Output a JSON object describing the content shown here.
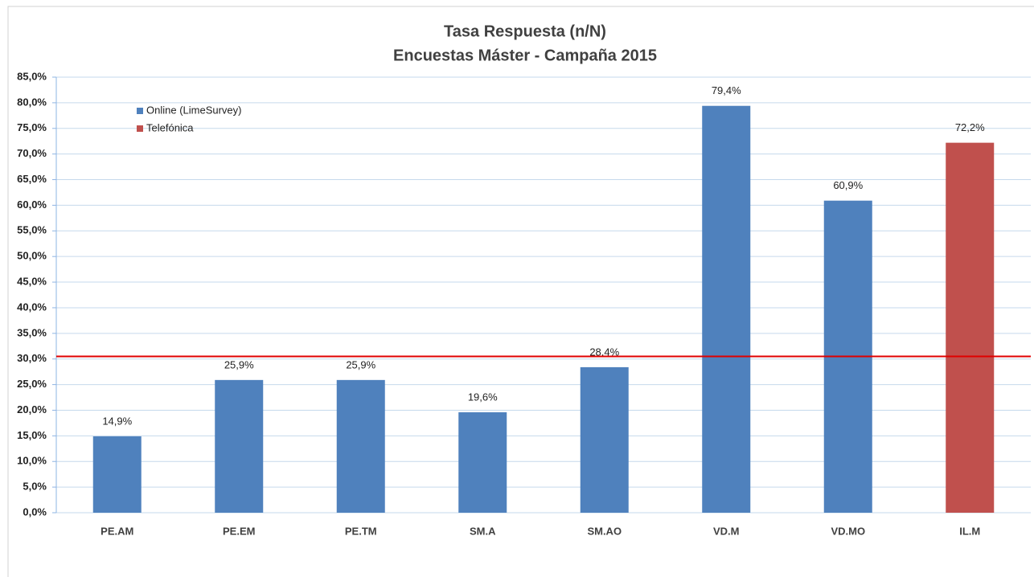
{
  "chart_data": {
    "type": "bar",
    "title": "Tasa Respuesta (n/N)",
    "subtitle": "Encuestas Máster - Campaña 2015",
    "categories": [
      "PE.AM",
      "PE.EM",
      "PE.TM",
      "SM.A",
      "SM.AO",
      "VD.M",
      "VD.MO",
      "IL.M"
    ],
    "series": [
      {
        "name": "Online (LimeSurvey)",
        "color": "#4f81bd",
        "values": [
          14.9,
          25.9,
          25.9,
          19.6,
          28.4,
          79.4,
          60.9,
          null
        ],
        "value_labels": [
          "14,9%",
          "25,9%",
          "25,9%",
          "19,6%",
          "28,4%",
          "79,4%",
          "60,9%",
          null
        ]
      },
      {
        "name": "Telefónica",
        "color": "#c0504d",
        "values": [
          null,
          null,
          null,
          null,
          null,
          null,
          null,
          72.2
        ],
        "value_labels": [
          null,
          null,
          null,
          null,
          null,
          null,
          null,
          "72,2%"
        ]
      }
    ],
    "ylim": [
      0,
      85
    ],
    "yticks": [
      {
        "value": 0,
        "label": "0,0%"
      },
      {
        "value": 5,
        "label": "5,0%"
      },
      {
        "value": 10,
        "label": "10,0%"
      },
      {
        "value": 15,
        "label": "15,0%"
      },
      {
        "value": 20,
        "label": "20,0%"
      },
      {
        "value": 25,
        "label": "25,0%"
      },
      {
        "value": 30,
        "label": "30,0%"
      },
      {
        "value": 35,
        "label": "35,0%"
      },
      {
        "value": 40,
        "label": "40,0%"
      },
      {
        "value": 45,
        "label": "45,0%"
      },
      {
        "value": 50,
        "label": "50,0%"
      },
      {
        "value": 55,
        "label": "55,0%"
      },
      {
        "value": 60,
        "label": "60,0%"
      },
      {
        "value": 65,
        "label": "65,0%"
      },
      {
        "value": 70,
        "label": "70,0%"
      },
      {
        "value": 75,
        "label": "75,0%"
      },
      {
        "value": 80,
        "label": "80,0%"
      },
      {
        "value": 85,
        "label": "85,0%"
      }
    ],
    "grid": true,
    "legend": "top-left",
    "reference_line": {
      "value": 30.5,
      "color": "#e00000"
    }
  }
}
